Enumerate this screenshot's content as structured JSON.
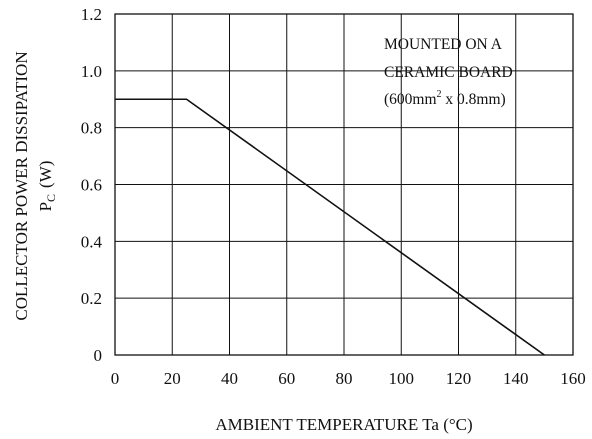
{
  "chart_data": {
    "type": "line",
    "xlabel": "AMBIENT TEMPERATURE Ta (°C)",
    "ylabel_line1": "COLLECTOR POWER DISSIPATION",
    "ylabel_line2_main": "P",
    "ylabel_line2_sub": "C",
    "ylabel_line2_unit": "(W)",
    "xlim": [
      0,
      160
    ],
    "ylim": [
      0,
      1.2
    ],
    "x_ticks": [
      0,
      20,
      40,
      60,
      80,
      100,
      120,
      140,
      160
    ],
    "y_ticks": [
      0,
      0.2,
      0.4,
      0.6,
      0.8,
      1.0,
      1.2
    ],
    "x_tick_labels": [
      "0",
      "20",
      "40",
      "60",
      "80",
      "100",
      "120",
      "140",
      "160"
    ],
    "y_tick_labels": [
      "0",
      "0.2",
      "0.4",
      "0.6",
      "0.8",
      "1.0",
      "1.2"
    ],
    "grid": true,
    "annotation": {
      "line1": "MOUNTED ON A",
      "line2": "CERAMIC BOARD",
      "line3_prefix": "(600mm",
      "line3_sup": "2",
      "line3_suffix": " x 0.8mm)"
    },
    "series": [
      {
        "x": [
          0,
          25,
          150
        ],
        "y": [
          0.9,
          0.9,
          0
        ]
      }
    ]
  }
}
